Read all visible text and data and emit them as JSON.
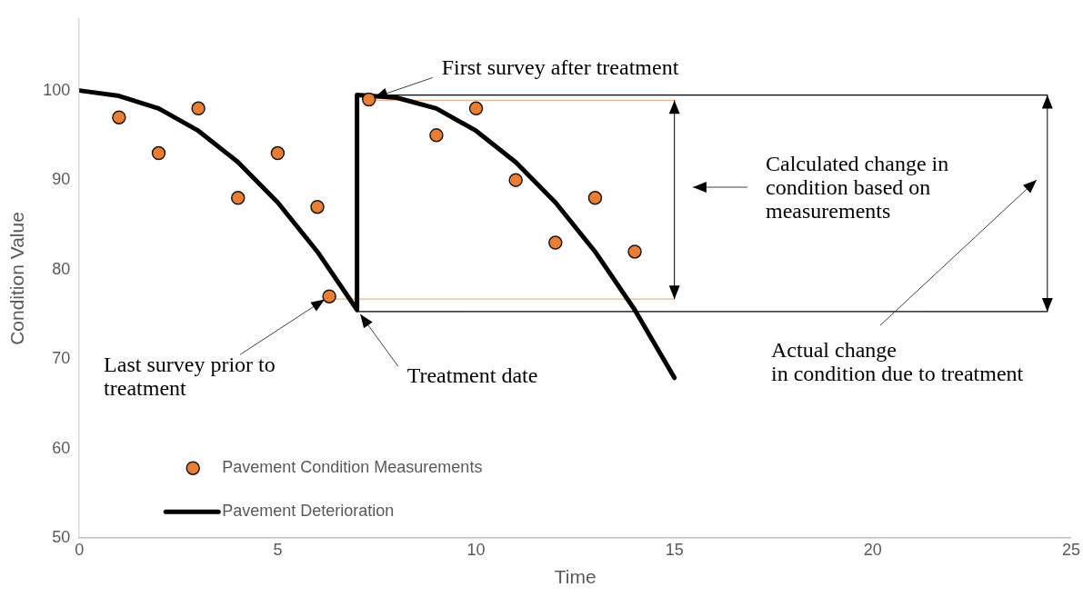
{
  "chart_data": {
    "type": "line",
    "xlabel": "Time",
    "ylabel": "Condition Value",
    "xlim": [
      0,
      25
    ],
    "xticks": [
      0,
      5,
      10,
      15,
      20,
      25
    ],
    "ylim": [
      50,
      108
    ],
    "yticks": [
      50,
      60,
      70,
      80,
      90,
      100
    ],
    "legend": "bottom left",
    "series": [
      {
        "name": "Pavement Condition Measurements",
        "type": "scatter",
        "marker": "circle",
        "color": "#ed7d31",
        "x": [
          1,
          2,
          3,
          4,
          5,
          6,
          6.3,
          7.3,
          9,
          10,
          11,
          12,
          13,
          14
        ],
        "values": [
          97,
          93,
          98,
          88,
          93,
          87,
          77,
          99,
          95,
          98,
          90,
          83,
          88,
          82
        ]
      },
      {
        "name": "Pavement Deterioration",
        "marker": "none",
        "color": "#000000",
        "x": [
          0,
          1,
          2,
          3,
          4,
          5,
          6,
          7,
          7,
          8,
          9,
          10,
          11,
          12,
          13,
          14,
          15
        ],
        "values": [
          100,
          99.4,
          98,
          95.5,
          92,
          87.5,
          82,
          75.5,
          99.5,
          99.2,
          98,
          95.5,
          92,
          87.5,
          82,
          75.5,
          67.9
        ]
      },
      {
        "marker": "none",
        "color": "#f4b183",
        "x": [
          7.3,
          15
        ],
        "values": [
          98.9,
          98.9
        ]
      },
      {
        "marker": "none",
        "color": "#f4b183",
        "x": [
          6.3,
          15
        ],
        "values": [
          76.7,
          76.7
        ]
      },
      {
        "marker": "none",
        "color": "#000000",
        "x": [
          7,
          24.4
        ],
        "values": [
          99.5,
          99.5
        ]
      },
      {
        "marker": "none",
        "color": "#000000",
        "x": [
          7,
          24.4
        ],
        "values": [
          75.3,
          75.3
        ]
      }
    ],
    "annotations": [
      {
        "text": "First survey after treatment",
        "x": 7.3,
        "y": 99
      },
      "Calculated change in condition based on measurements",
      {
        "text": "Last survey prior to treatment",
        "x": 6.3,
        "y": 77
      },
      {
        "text": "Treatment date",
        "x": 7,
        "y": 75.5
      },
      "Actual change in condition due to treatment"
    ]
  }
}
